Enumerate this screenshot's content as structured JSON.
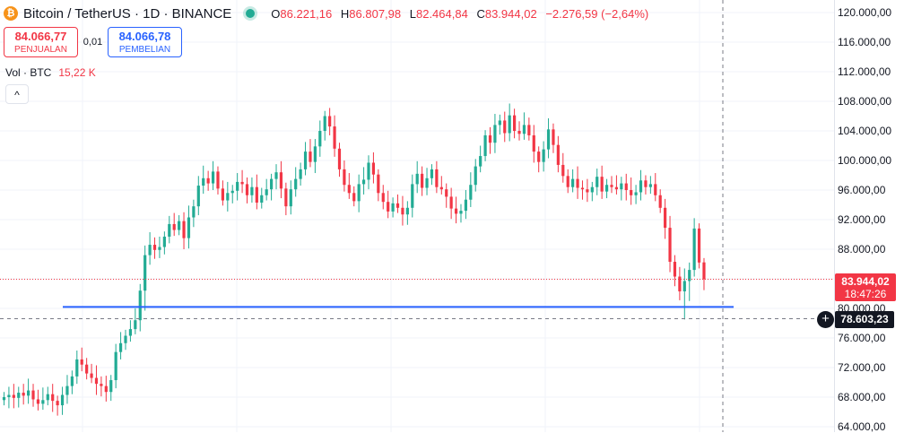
{
  "header": {
    "logo_text": "₿",
    "symbol_title": "Bitcoin / TetherUS · 1D · BINANCE",
    "ohlc": {
      "open_label": "O",
      "open": "86.221,16",
      "high_label": "H",
      "high": "86.807,98",
      "low_label": "L",
      "low": "82.464,84",
      "close_label": "C",
      "close": "83.944,02",
      "change": "−2.276,59 (−2,64%)"
    }
  },
  "trade": {
    "sell_price": "84.066,77",
    "sell_label": "PENJUALAN",
    "spread": "0,01",
    "buy_price": "84.066,78",
    "buy_label": "PEMBELIAN"
  },
  "volume": {
    "label": "Vol · BTC",
    "value": "15,22 K"
  },
  "collapse_icon": "^",
  "price_scale": {
    "last_price": "83.944,02",
    "countdown": "18:47:26",
    "crosshair_price": "78.603,23",
    "plus_icon": "+"
  },
  "colors": {
    "up": "#22ab94",
    "down": "#f23645",
    "hline": "#2962ff",
    "grid": "#f0f3fa"
  },
  "chart_data": {
    "type": "candlestick",
    "symbol": "Bitcoin / TetherUS",
    "interval": "1D",
    "exchange": "BINANCE",
    "ylim": [
      63000,
      122000
    ],
    "y_ticks": [
      {
        "value": 120000,
        "label": "120.000,00"
      },
      {
        "value": 116000,
        "label": "116.000,00"
      },
      {
        "value": 112000,
        "label": "112.000,00"
      },
      {
        "value": 108000,
        "label": "108.000,00"
      },
      {
        "value": 104000,
        "label": "104.000,00"
      },
      {
        "value": 100000,
        "label": "100.000,00"
      },
      {
        "value": 96000,
        "label": "96.000,00"
      },
      {
        "value": 92000,
        "label": "92.000,00"
      },
      {
        "value": 88000,
        "label": "88.000,00"
      },
      {
        "value": 84000,
        "label": "84.000,00"
      },
      {
        "value": 80000,
        "label": "80.000,00"
      },
      {
        "value": 76000,
        "label": "76.000,00"
      },
      {
        "value": 72000,
        "label": "72.000,00"
      },
      {
        "value": 68000,
        "label": "68.000,00"
      },
      {
        "value": 64000,
        "label": "64.000,00"
      }
    ],
    "horizontal_line": 80200,
    "last_price": 83944.02,
    "crosshair_price": 78603.23,
    "closes": [
      68000,
      68300,
      67900,
      68600,
      68200,
      68900,
      67700,
      67100,
      67600,
      68400,
      67500,
      66900,
      68300,
      69500,
      70800,
      73100,
      72400,
      71200,
      70600,
      69800,
      69500,
      68700,
      70300,
      74100,
      75300,
      76300,
      77200,
      78400,
      82400,
      87200,
      88600,
      87900,
      88300,
      89700,
      91400,
      90600,
      91800,
      89500,
      92300,
      93800,
      96600,
      97600,
      96900,
      98500,
      96200,
      94600,
      95600,
      95900,
      97100,
      96800,
      95300,
      96400,
      94300,
      95300,
      96100,
      97500,
      98400,
      96200,
      93800,
      96100,
      97500,
      98800,
      101200,
      99800,
      101900,
      104000,
      106000,
      104600,
      101600,
      98800,
      96700,
      95600,
      94500,
      96800,
      97400,
      99700,
      98100,
      95600,
      94400,
      93100,
      94200,
      93600,
      92700,
      93600,
      96800,
      98200,
      96300,
      97600,
      98800,
      96400,
      96100,
      95100,
      93500,
      92800,
      93200,
      94700,
      96700,
      99200,
      100600,
      103400,
      102400,
      104800,
      105400,
      103700,
      106100,
      104000,
      103600,
      104800,
      103400,
      101200,
      99800,
      101500,
      104200,
      102100,
      99400,
      97900,
      96400,
      97500,
      96300,
      96100,
      95700,
      96400,
      97800,
      95800,
      96700,
      96400,
      96100,
      96900,
      96000,
      95300,
      95700,
      97300,
      96400,
      96800,
      95300,
      93600,
      90900,
      86300,
      84300,
      82300,
      83700,
      85200,
      90800,
      86200,
      83944
    ]
  }
}
